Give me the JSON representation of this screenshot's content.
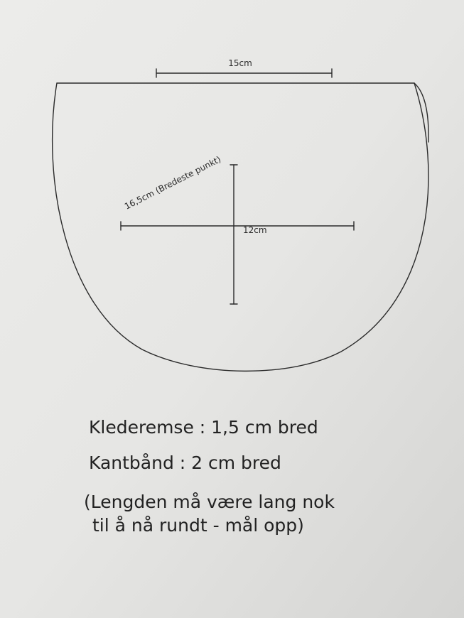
{
  "dimensions": {
    "top_width": "15cm",
    "widest": "16,5cm (Bredeste punkt)",
    "height": "12cm"
  },
  "notes": {
    "lines": [
      "Klederemse : 1,5 cm bred",
      "Kantbånd : 2 cm bred",
      "(Lengden må være lang nok",
      "til å nå rundt - mål opp)"
    ]
  }
}
